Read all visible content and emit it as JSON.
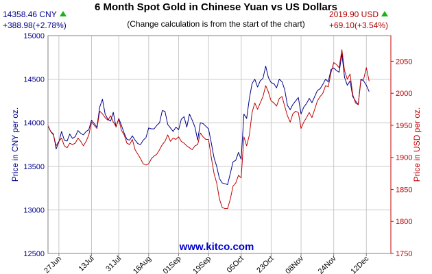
{
  "header": {
    "title": "6 Month Spot Gold in Chinese Yuan vs US Dollars",
    "subtitle": "(Change calculation is from the start of the chart)",
    "left_price": "14358.46 CNY",
    "left_change": "+388.98(+2.78%)",
    "right_price": "2019.90 USD",
    "right_change": "+69.10(+3.54%)",
    "up_icon": "up-triangle-icon",
    "website": "www.kitco.com"
  },
  "colors": {
    "cny_series": "#00008b",
    "usd_series": "#c00000",
    "grid": "#c8c8c8",
    "frame": "#808080",
    "website": "#0000cc",
    "up_arrow": "#19b319"
  },
  "chart_data": {
    "type": "line",
    "title": "6 Month Spot Gold in Chinese Yuan vs US Dollars",
    "ylabel_left": "Price in CNY per oz.",
    "ylabel_right": "Price in USD per oz.",
    "ylim_left": [
      12500,
      15000
    ],
    "ylim_right": [
      1750,
      2090
    ],
    "yticks_left": [
      12500,
      13000,
      13500,
      14000,
      14500,
      15000
    ],
    "yticks_right": [
      1750,
      1800,
      1850,
      1900,
      1950,
      2000,
      2050
    ],
    "xlim": [
      0,
      126
    ],
    "xticks": [
      {
        "x": 4,
        "label": "27Jun"
      },
      {
        "x": 16,
        "label": "13Jul"
      },
      {
        "x": 26,
        "label": "31Jul"
      },
      {
        "x": 37,
        "label": "16Aug"
      },
      {
        "x": 48,
        "label": "01Sep"
      },
      {
        "x": 59,
        "label": "19Sep"
      },
      {
        "x": 71,
        "label": "05Oct"
      },
      {
        "x": 82,
        "label": "23Oct"
      },
      {
        "x": 93,
        "label": "08Nov"
      },
      {
        "x": 105,
        "label": "24Nov"
      },
      {
        "x": 117,
        "label": "12Dec"
      }
    ],
    "grid": true,
    "series": [
      {
        "name": "CNY",
        "axis": "left",
        "values": [
          [
            0,
            13960
          ],
          [
            1,
            13900
          ],
          [
            2,
            13870
          ],
          [
            3,
            13700
          ],
          [
            4,
            13780
          ],
          [
            5,
            13900
          ],
          [
            6,
            13800
          ],
          [
            7,
            13790
          ],
          [
            8,
            13870
          ],
          [
            9,
            13820
          ],
          [
            10,
            13840
          ],
          [
            11,
            13910
          ],
          [
            12,
            13880
          ],
          [
            13,
            13860
          ],
          [
            14,
            13900
          ],
          [
            15,
            13920
          ],
          [
            16,
            14030
          ],
          [
            17,
            13990
          ],
          [
            18,
            13950
          ],
          [
            19,
            14180
          ],
          [
            20,
            14270
          ],
          [
            21,
            14100
          ],
          [
            22,
            14040
          ],
          [
            23,
            14020
          ],
          [
            24,
            14120
          ],
          [
            25,
            13950
          ],
          [
            26,
            14050
          ],
          [
            27,
            13970
          ],
          [
            28,
            13880
          ],
          [
            29,
            13810
          ],
          [
            30,
            13800
          ],
          [
            31,
            13850
          ],
          [
            32,
            13800
          ],
          [
            33,
            13760
          ],
          [
            34,
            13750
          ],
          [
            35,
            13800
          ],
          [
            36,
            13830
          ],
          [
            37,
            13940
          ],
          [
            38,
            13930
          ],
          [
            39,
            13930
          ],
          [
            40,
            13970
          ],
          [
            41,
            14000
          ],
          [
            42,
            14140
          ],
          [
            43,
            14130
          ],
          [
            44,
            13980
          ],
          [
            45,
            13940
          ],
          [
            46,
            13900
          ],
          [
            47,
            13950
          ],
          [
            48,
            13920
          ],
          [
            49,
            14040
          ],
          [
            50,
            14070
          ],
          [
            51,
            13950
          ],
          [
            52,
            14100
          ],
          [
            53,
            14030
          ],
          [
            54,
            13950
          ],
          [
            55,
            13800
          ],
          [
            56,
            14000
          ],
          [
            57,
            13990
          ],
          [
            58,
            13960
          ],
          [
            59,
            13930
          ],
          [
            60,
            13770
          ],
          [
            61,
            13600
          ],
          [
            62,
            13500
          ],
          [
            63,
            13360
          ],
          [
            64,
            13310
          ],
          [
            65,
            13300
          ],
          [
            66,
            13290
          ],
          [
            67,
            13420
          ],
          [
            68,
            13550
          ],
          [
            69,
            13570
          ],
          [
            70,
            13660
          ],
          [
            71,
            13580
          ],
          [
            72,
            14100
          ],
          [
            73,
            14050
          ],
          [
            74,
            14280
          ],
          [
            75,
            14450
          ],
          [
            76,
            14500
          ],
          [
            77,
            14410
          ],
          [
            78,
            14480
          ],
          [
            79,
            14510
          ],
          [
            80,
            14650
          ],
          [
            81,
            14520
          ],
          [
            82,
            14460
          ],
          [
            83,
            14450
          ],
          [
            84,
            14400
          ],
          [
            85,
            14500
          ],
          [
            86,
            14470
          ],
          [
            87,
            14380
          ],
          [
            88,
            14200
          ],
          [
            89,
            14150
          ],
          [
            90,
            14210
          ],
          [
            91,
            14250
          ],
          [
            92,
            14290
          ],
          [
            93,
            14100
          ],
          [
            94,
            14180
          ],
          [
            95,
            14220
          ],
          [
            96,
            14280
          ],
          [
            97,
            14230
          ],
          [
            98,
            14300
          ],
          [
            99,
            14370
          ],
          [
            100,
            14390
          ],
          [
            101,
            14440
          ],
          [
            102,
            14500
          ],
          [
            103,
            14470
          ],
          [
            104,
            14610
          ],
          [
            105,
            14630
          ],
          [
            106,
            14600
          ],
          [
            107,
            14580
          ],
          [
            108,
            14790
          ],
          [
            109,
            14520
          ],
          [
            110,
            14430
          ],
          [
            111,
            14480
          ],
          [
            112,
            14300
          ],
          [
            113,
            14250
          ],
          [
            114,
            14210
          ],
          [
            115,
            14500
          ],
          [
            116,
            14480
          ],
          [
            117,
            14430
          ],
          [
            118,
            14358
          ]
        ]
      },
      {
        "name": "USD",
        "axis": "right",
        "values": [
          [
            0,
            1950
          ],
          [
            1,
            1940
          ],
          [
            2,
            1935
          ],
          [
            3,
            1918
          ],
          [
            4,
            1925
          ],
          [
            5,
            1930
          ],
          [
            6,
            1918
          ],
          [
            7,
            1915
          ],
          [
            8,
            1922
          ],
          [
            9,
            1920
          ],
          [
            10,
            1922
          ],
          [
            11,
            1930
          ],
          [
            12,
            1925
          ],
          [
            13,
            1918
          ],
          [
            14,
            1925
          ],
          [
            15,
            1935
          ],
          [
            16,
            1955
          ],
          [
            17,
            1950
          ],
          [
            18,
            1945
          ],
          [
            19,
            1972
          ],
          [
            20,
            1968
          ],
          [
            21,
            1962
          ],
          [
            22,
            1958
          ],
          [
            23,
            1965
          ],
          [
            24,
            1955
          ],
          [
            25,
            1948
          ],
          [
            26,
            1960
          ],
          [
            27,
            1942
          ],
          [
            28,
            1935
          ],
          [
            29,
            1922
          ],
          [
            30,
            1920
          ],
          [
            31,
            1928
          ],
          [
            32,
            1912
          ],
          [
            33,
            1905
          ],
          [
            34,
            1898
          ],
          [
            35,
            1890
          ],
          [
            36,
            1888
          ],
          [
            37,
            1890
          ],
          [
            38,
            1898
          ],
          [
            39,
            1902
          ],
          [
            40,
            1905
          ],
          [
            41,
            1912
          ],
          [
            42,
            1920
          ],
          [
            43,
            1925
          ],
          [
            44,
            1935
          ],
          [
            45,
            1925
          ],
          [
            46,
            1930
          ],
          [
            47,
            1928
          ],
          [
            48,
            1932
          ],
          [
            49,
            1925
          ],
          [
            50,
            1922
          ],
          [
            51,
            1918
          ],
          [
            52,
            1915
          ],
          [
            53,
            1912
          ],
          [
            54,
            1918
          ],
          [
            55,
            1920
          ],
          [
            56,
            1938
          ],
          [
            57,
            1932
          ],
          [
            58,
            1928
          ],
          [
            59,
            1928
          ],
          [
            60,
            1900
          ],
          [
            61,
            1875
          ],
          [
            62,
            1860
          ],
          [
            63,
            1835
          ],
          [
            64,
            1822
          ],
          [
            65,
            1820
          ],
          [
            66,
            1820
          ],
          [
            67,
            1835
          ],
          [
            68,
            1855
          ],
          [
            69,
            1860
          ],
          [
            70,
            1872
          ],
          [
            71,
            1868
          ],
          [
            72,
            1932
          ],
          [
            73,
            1918
          ],
          [
            74,
            1935
          ],
          [
            75,
            1970
          ],
          [
            76,
            1985
          ],
          [
            77,
            1975
          ],
          [
            78,
            1985
          ],
          [
            79,
            1995
          ],
          [
            80,
            2012
          ],
          [
            81,
            2002
          ],
          [
            82,
            1988
          ],
          [
            83,
            1985
          ],
          [
            84,
            1980
          ],
          [
            85,
            1992
          ],
          [
            86,
            1995
          ],
          [
            87,
            1980
          ],
          [
            88,
            1965
          ],
          [
            89,
            1955
          ],
          [
            90,
            1968
          ],
          [
            91,
            1972
          ],
          [
            92,
            1970
          ],
          [
            93,
            1945
          ],
          [
            94,
            1955
          ],
          [
            95,
            1962
          ],
          [
            96,
            1970
          ],
          [
            97,
            1962
          ],
          [
            98,
            1975
          ],
          [
            99,
            1988
          ],
          [
            100,
            1995
          ],
          [
            101,
            2000
          ],
          [
            102,
            2012
          ],
          [
            103,
            2010
          ],
          [
            104,
            2032
          ],
          [
            105,
            2048
          ],
          [
            106,
            2045
          ],
          [
            107,
            2040
          ],
          [
            108,
            2068
          ],
          [
            109,
            2035
          ],
          [
            110,
            2022
          ],
          [
            111,
            2030
          ],
          [
            112,
            1998
          ],
          [
            113,
            1985
          ],
          [
            114,
            1982
          ],
          [
            115,
            2020
          ],
          [
            116,
            2022
          ],
          [
            117,
            2040
          ],
          [
            118,
            2019
          ]
        ]
      }
    ]
  }
}
